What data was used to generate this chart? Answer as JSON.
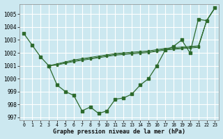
{
  "xlabel": "Graphe pression niveau de la mer (hPa)",
  "bg_color": "#cce8f0",
  "grid_color": "#ffffff",
  "line_color": "#2d6a2d",
  "ylim": [
    996.8,
    1005.8
  ],
  "yticks": [
    997,
    998,
    999,
    1000,
    1001,
    1002,
    1003,
    1004,
    1005
  ],
  "xticks": [
    0,
    1,
    2,
    3,
    4,
    5,
    6,
    7,
    8,
    9,
    10,
    11,
    12,
    13,
    14,
    15,
    16,
    17,
    18,
    19,
    20,
    21,
    22,
    23
  ],
  "line1_x": [
    0,
    1,
    2,
    3
  ],
  "line1_y": [
    1003.5,
    1002.6,
    1001.7,
    1001.0
  ],
  "line2_x": [
    3,
    4,
    5,
    6,
    7,
    8,
    9,
    10,
    11,
    12,
    13,
    14,
    15,
    16,
    17,
    18,
    19,
    20,
    21,
    22,
    23
  ],
  "line2_y": [
    1001.0,
    999.5,
    999.0,
    998.7,
    997.5,
    997.8,
    997.3,
    997.5,
    998.4,
    998.5,
    998.8,
    999.5,
    1000.0,
    1001.0,
    1002.2,
    1002.5,
    1003.0,
    1002.0,
    1004.6,
    1004.5,
    1005.5
  ],
  "line3_x": [
    3,
    4,
    5,
    6,
    7,
    8,
    9,
    10,
    11,
    12,
    13,
    14,
    15,
    16,
    17,
    18,
    19,
    20,
    21,
    22,
    23
  ],
  "line3_y": [
    1001.0,
    1001.15,
    1001.3,
    1001.45,
    1001.55,
    1001.65,
    1001.75,
    1001.85,
    1001.95,
    1002.0,
    1002.05,
    1002.1,
    1002.15,
    1002.25,
    1002.35,
    1002.4,
    1002.45,
    1002.5,
    1002.55,
    1004.5,
    1005.5
  ],
  "line4_x": [
    3,
    4,
    5,
    6,
    7,
    8,
    9,
    10,
    11,
    12,
    13,
    14,
    15,
    16,
    17,
    18,
    19,
    20,
    21,
    22,
    23
  ],
  "line4_y": [
    1001.0,
    1001.1,
    1001.25,
    1001.38,
    1001.48,
    1001.58,
    1001.68,
    1001.78,
    1001.88,
    1001.93,
    1001.98,
    1002.03,
    1002.08,
    1002.18,
    1002.28,
    1002.33,
    1002.38,
    1002.43,
    1002.48,
    1004.5,
    1005.5
  ],
  "line5_x": [
    3,
    4,
    5,
    6,
    7,
    8,
    9,
    10,
    11,
    12,
    13,
    14,
    15,
    16,
    17,
    18,
    19,
    20,
    21,
    22,
    23
  ],
  "line5_y": [
    1001.0,
    1001.05,
    1001.2,
    1001.32,
    1001.42,
    1001.52,
    1001.62,
    1001.72,
    1001.82,
    1001.87,
    1001.92,
    1001.97,
    1002.02,
    1002.12,
    1002.22,
    1002.27,
    1002.32,
    1002.37,
    1002.42,
    1004.5,
    1005.5
  ]
}
